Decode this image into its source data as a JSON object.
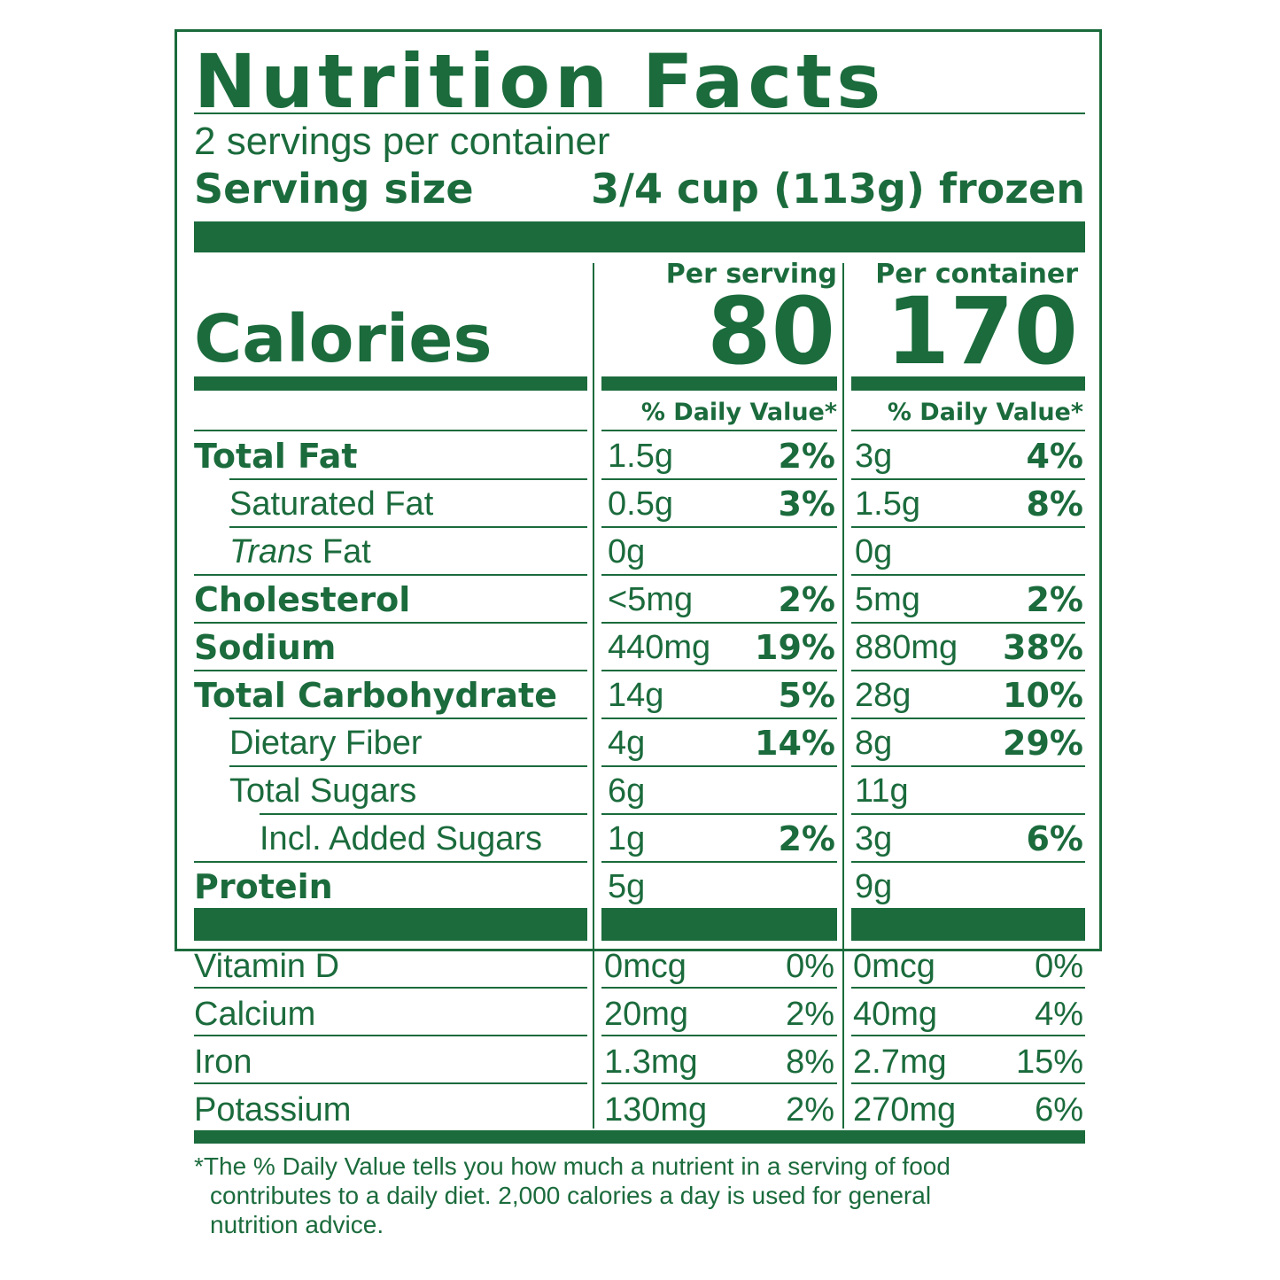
{
  "label": {
    "title": "Nutrition Facts",
    "servings_per_container": "2 servings per container",
    "serving_size_label": "Serving size",
    "serving_size_value": "3/4 cup (113g) frozen",
    "calories_label": "Calories",
    "per_serving_header": "Per serving",
    "per_container_header": "Per container",
    "calories_per_serving": "80",
    "calories_per_container": "170",
    "dv_header_serving": "% Daily Value*",
    "dv_header_container": "% Daily Value*"
  },
  "nutrients": [
    {
      "name": "Total Fat",
      "serving_amt": "1.5g",
      "serving_pct": "2%",
      "container_amt": "3g",
      "container_pct": "4%"
    },
    {
      "name": "Saturated Fat",
      "serving_amt": "0.5g",
      "serving_pct": "3%",
      "container_amt": "1.5g",
      "container_pct": "8%"
    },
    {
      "name_italic": "Trans",
      "name_rest": " Fat",
      "serving_amt": "0g",
      "serving_pct": "",
      "container_amt": "0g",
      "container_pct": ""
    },
    {
      "name": "Cholesterol",
      "serving_amt": "<5mg",
      "serving_pct": "2%",
      "container_amt": "5mg",
      "container_pct": "2%"
    },
    {
      "name": "Sodium",
      "serving_amt": "440mg",
      "serving_pct": "19%",
      "container_amt": "880mg",
      "container_pct": "38%"
    },
    {
      "name": "Total Carbohydrate",
      "serving_amt": "14g",
      "serving_pct": "5%",
      "container_amt": "28g",
      "container_pct": "10%"
    },
    {
      "name": "Dietary Fiber",
      "serving_amt": "4g",
      "serving_pct": "14%",
      "container_amt": "8g",
      "container_pct": "29%"
    },
    {
      "name": "Total Sugars",
      "serving_amt": "6g",
      "serving_pct": "",
      "container_amt": "11g",
      "container_pct": ""
    },
    {
      "name": "Incl. Added Sugars",
      "serving_amt": "1g",
      "serving_pct": "2%",
      "container_amt": "3g",
      "container_pct": "6%"
    },
    {
      "name": "Protein",
      "serving_amt": "5g",
      "serving_pct": "",
      "container_amt": "9g",
      "container_pct": ""
    }
  ],
  "vitamins": [
    {
      "name": "Vitamin D",
      "serving_amt": "0mcg",
      "serving_pct": "0%",
      "container_amt": "0mcg",
      "container_pct": "0%"
    },
    {
      "name": "Calcium",
      "serving_amt": "20mg",
      "serving_pct": "2%",
      "container_amt": "40mg",
      "container_pct": "4%"
    },
    {
      "name": "Iron",
      "serving_amt": "1.3mg",
      "serving_pct": "8%",
      "container_amt": "2.7mg",
      "container_pct": "15%"
    },
    {
      "name": "Potassium",
      "serving_amt": "130mg",
      "serving_pct": "2%",
      "container_amt": "270mg",
      "container_pct": "6%"
    }
  ],
  "footnote": {
    "line1": "*The % Daily Value tells you how much a nutrient in a serving of food",
    "line2": "contributes to a daily diet. 2,000 calories a day is used for general",
    "line3": "nutrition advice."
  },
  "colors": {
    "ink": "#1b6b3c",
    "background": "#ffffff"
  }
}
